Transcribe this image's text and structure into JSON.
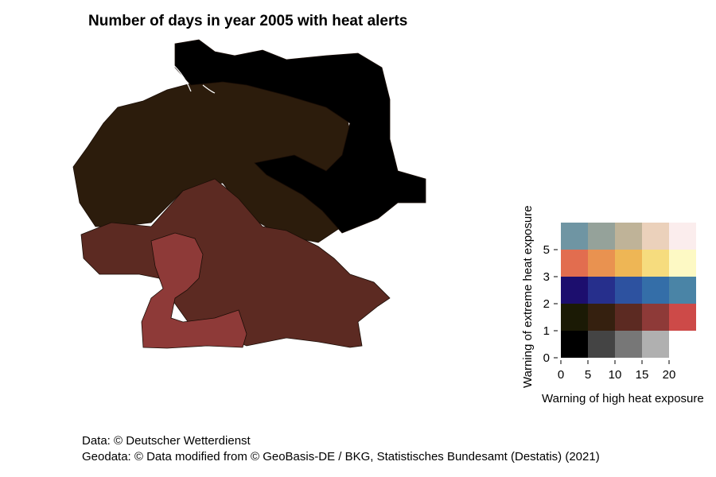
{
  "title": "Number of days in year 2005 with heat alerts",
  "captions": {
    "data_source": "Data: © Deutscher Wetterdienst",
    "geodata_source": "Geodata: © Data modified from © GeoBasis-DE / BKG, Statistisches Bundesamt (Destatis) (2021)"
  },
  "legend": {
    "x_label": "Warning of high heat exposure",
    "y_label": "Warning of extreme heat exposure",
    "x_ticks": [
      "0",
      "5",
      "10",
      "15",
      "20"
    ],
    "y_ticks": [
      "0",
      "1",
      "2",
      "3",
      "5"
    ],
    "grid_colors": [
      [
        "#000000",
        "#444444",
        "#777777",
        "#b0b0b0",
        null
      ],
      [
        "#1b1a05",
        "#35200f",
        "#5c2a22",
        "#8e3a38",
        "#cd4a48"
      ],
      [
        "#1c0e6e",
        "#262f8c",
        "#2d52a0",
        "#346ea8",
        "#4a84a6"
      ],
      [
        "#e26d4f",
        "#e99250",
        "#eeb655",
        "#f6dc7e",
        "#fdf9c4"
      ],
      [
        "#6f95a3",
        "#95a29a",
        "#bfb398",
        "#ebd1bb",
        "#fbeded"
      ]
    ]
  },
  "map_regions": {
    "north_east": {
      "fill": "#000000",
      "label_high": "0",
      "label_extreme": "0"
    },
    "center_north": {
      "fill": "#2c1c0c",
      "label_high": "0-5",
      "label_extreme": "1-2"
    },
    "south": {
      "fill": "#5c2a22",
      "label_high": "5-10",
      "label_extreme": "1-2"
    },
    "south_west": {
      "fill": "#8e3a38",
      "label_high": "10-15",
      "label_extreme": "1-2"
    }
  }
}
